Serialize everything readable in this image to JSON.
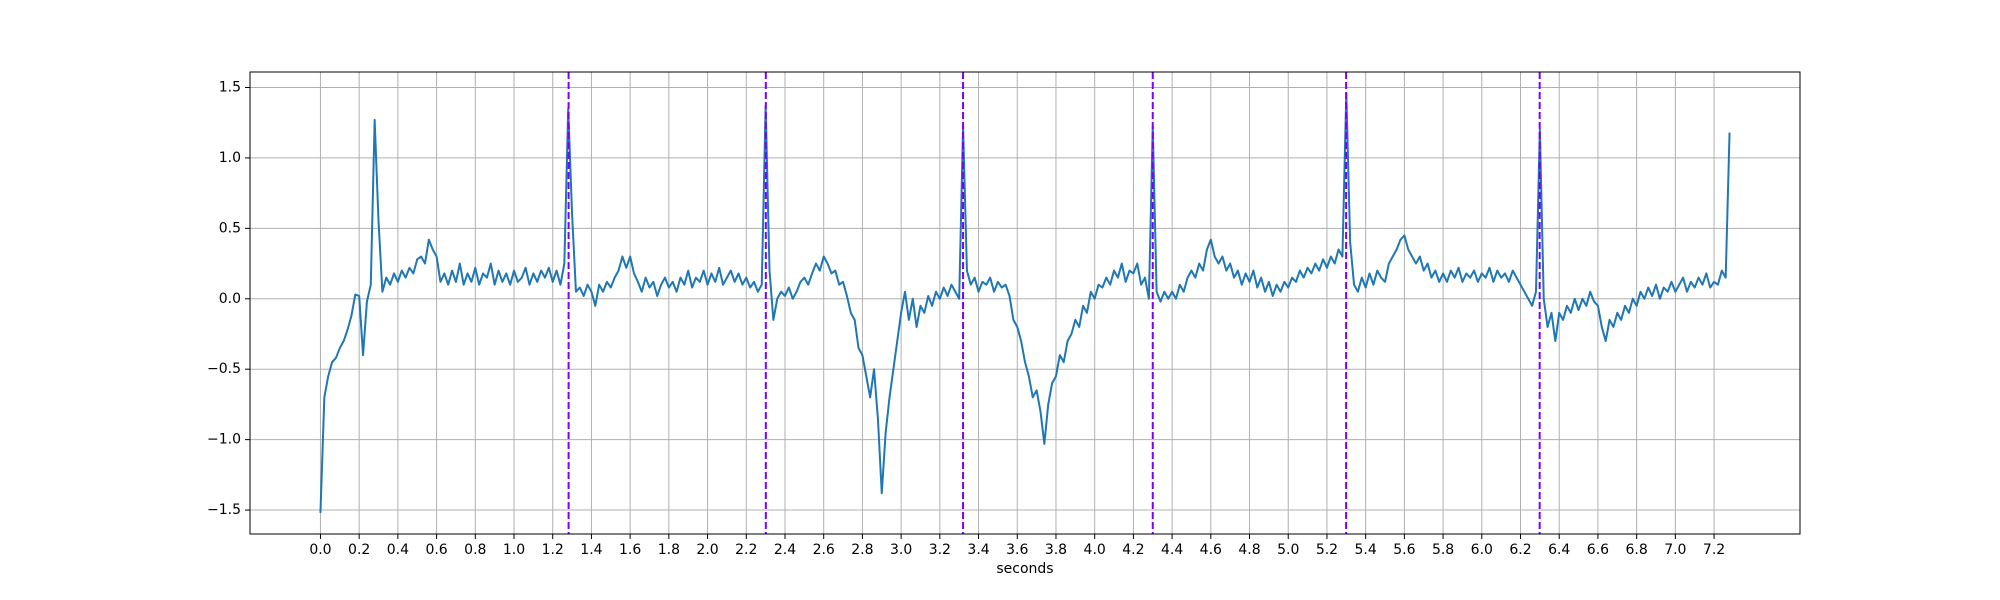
{
  "chart_data": {
    "type": "line",
    "x_label": "seconds",
    "color": "#1f77b4",
    "grid": true,
    "xlim": [
      -0.364,
      7.644
    ],
    "ylim": [
      -1.67,
      1.61
    ],
    "xticks": [
      {
        "value": 0,
        "label": "0.0"
      },
      0.2,
      0.4,
      0.6,
      0.8,
      {
        "value": 1,
        "label": "1.0"
      },
      1.2,
      1.4,
      1.6,
      1.8,
      {
        "value": 2,
        "label": "2.0"
      },
      2.2,
      2.4,
      2.6,
      2.8,
      {
        "value": 3,
        "label": "3.0"
      },
      3.2,
      3.4,
      3.6,
      3.8,
      {
        "value": 4,
        "label": "4.0"
      },
      4.2,
      4.4,
      4.6,
      4.8,
      {
        "value": 5,
        "label": "5.0"
      },
      5.2,
      5.4,
      5.6,
      5.8,
      {
        "value": 6,
        "label": "6.0"
      },
      6.2,
      6.4,
      6.6,
      6.8,
      {
        "value": 7,
        "label": "7.0"
      },
      7.2
    ],
    "yticks": [
      {
        "value": -1.5,
        "label": "−1.5"
      },
      {
        "value": -1,
        "label": "−1.0"
      },
      {
        "value": -0.5,
        "label": "−0.5"
      },
      {
        "value": 0,
        "label": "0.0"
      },
      0.5,
      {
        "value": 1,
        "label": "1.0"
      },
      1.5
    ],
    "vlines": {
      "color": "#7a00ff",
      "x": [
        1.282,
        2.301,
        3.32,
        4.3,
        5.299,
        6.299
      ]
    },
    "x": [
      0,
      0.02,
      0.04,
      0.06,
      0.08,
      0.1,
      0.12,
      0.14,
      0.16,
      0.18,
      0.2,
      0.22,
      0.24,
      0.26,
      0.28,
      0.3,
      0.32,
      0.34,
      0.36,
      0.38,
      0.4,
      0.42,
      0.44,
      0.46,
      0.48,
      0.5,
      0.52,
      0.54,
      0.56,
      0.58,
      0.6,
      0.62,
      0.64,
      0.66,
      0.68,
      0.7,
      0.72,
      0.74,
      0.76,
      0.78,
      0.8,
      0.82,
      0.84,
      0.86,
      0.88,
      0.9,
      0.92,
      0.94,
      0.96,
      0.98,
      1,
      1.02,
      1.04,
      1.06,
      1.08,
      1.1,
      1.12,
      1.14,
      1.16,
      1.18,
      1.2,
      1.22,
      1.24,
      1.26,
      1.28,
      1.3,
      1.32,
      1.34,
      1.36,
      1.38,
      1.4,
      1.42,
      1.44,
      1.46,
      1.48,
      1.5,
      1.52,
      1.54,
      1.56,
      1.58,
      1.6,
      1.62,
      1.64,
      1.66,
      1.68,
      1.7,
      1.72,
      1.74,
      1.76,
      1.78,
      1.8,
      1.82,
      1.84,
      1.86,
      1.88,
      1.9,
      1.92,
      1.94,
      1.96,
      1.98,
      2,
      2.02,
      2.04,
      2.06,
      2.08,
      2.1,
      2.12,
      2.14,
      2.16,
      2.18,
      2.2,
      2.22,
      2.24,
      2.26,
      2.28,
      2.3,
      2.32,
      2.34,
      2.36,
      2.38,
      2.4,
      2.42,
      2.44,
      2.46,
      2.48,
      2.5,
      2.52,
      2.54,
      2.56,
      2.58,
      2.6,
      2.62,
      2.64,
      2.66,
      2.68,
      2.7,
      2.72,
      2.74,
      2.76,
      2.78,
      2.8,
      2.82,
      2.84,
      2.86,
      2.88,
      2.9,
      2.92,
      2.94,
      2.96,
      2.98,
      3,
      3.02,
      3.04,
      3.06,
      3.08,
      3.1,
      3.12,
      3.14,
      3.16,
      3.18,
      3.2,
      3.22,
      3.24,
      3.26,
      3.28,
      3.3,
      3.32,
      3.34,
      3.36,
      3.38,
      3.4,
      3.42,
      3.44,
      3.46,
      3.48,
      3.5,
      3.52,
      3.54,
      3.56,
      3.58,
      3.6,
      3.62,
      3.64,
      3.66,
      3.68,
      3.7,
      3.72,
      3.74,
      3.76,
      3.78,
      3.8,
      3.82,
      3.84,
      3.86,
      3.88,
      3.9,
      3.92,
      3.94,
      3.96,
      3.98,
      4,
      4.02,
      4.04,
      4.06,
      4.08,
      4.1,
      4.12,
      4.14,
      4.16,
      4.18,
      4.2,
      4.22,
      4.24,
      4.26,
      4.28,
      4.3,
      4.32,
      4.34,
      4.36,
      4.38,
      4.4,
      4.42,
      4.44,
      4.46,
      4.48,
      4.5,
      4.52,
      4.54,
      4.56,
      4.58,
      4.6,
      4.62,
      4.64,
      4.66,
      4.68,
      4.7,
      4.72,
      4.74,
      4.76,
      4.78,
      4.8,
      4.82,
      4.84,
      4.86,
      4.88,
      4.9,
      4.92,
      4.94,
      4.96,
      4.98,
      5,
      5.02,
      5.04,
      5.06,
      5.08,
      5.1,
      5.12,
      5.14,
      5.16,
      5.18,
      5.2,
      5.22,
      5.24,
      5.26,
      5.28,
      5.3,
      5.32,
      5.34,
      5.36,
      5.38,
      5.4,
      5.42,
      5.44,
      5.46,
      5.48,
      5.5,
      5.52,
      5.54,
      5.56,
      5.58,
      5.6,
      5.62,
      5.64,
      5.66,
      5.68,
      5.7,
      5.72,
      5.74,
      5.76,
      5.78,
      5.8,
      5.82,
      5.84,
      5.86,
      5.88,
      5.9,
      5.92,
      5.94,
      5.96,
      5.98,
      6,
      6.02,
      6.04,
      6.06,
      6.08,
      6.1,
      6.12,
      6.14,
      6.16,
      6.18,
      6.2,
      6.22,
      6.24,
      6.26,
      6.28,
      6.3,
      6.32,
      6.34,
      6.36,
      6.38,
      6.4,
      6.42,
      6.44,
      6.46,
      6.48,
      6.5,
      6.52,
      6.54,
      6.56,
      6.58,
      6.6,
      6.62,
      6.64,
      6.66,
      6.68,
      6.7,
      6.72,
      6.74,
      6.76,
      6.78,
      6.8,
      6.82,
      6.84,
      6.86,
      6.88,
      6.9,
      6.92,
      6.94,
      6.96,
      6.98,
      7,
      7.02,
      7.04,
      7.06,
      7.08,
      7.1,
      7.12,
      7.14,
      7.16,
      7.18,
      7.2,
      7.22,
      7.24,
      7.26,
      7.28
    ],
    "values": [
      -1.52,
      -0.7,
      -0.55,
      -0.45,
      -0.42,
      -0.35,
      -0.3,
      -0.22,
      -0.12,
      0.03,
      0.02,
      -0.4,
      -0.02,
      0.1,
      1.27,
      0.55,
      0.05,
      0.15,
      0.1,
      0.18,
      0.12,
      0.2,
      0.15,
      0.22,
      0.18,
      0.28,
      0.3,
      0.25,
      0.42,
      0.35,
      0.3,
      0.12,
      0.18,
      0.1,
      0.2,
      0.12,
      0.25,
      0.1,
      0.18,
      0.12,
      0.22,
      0.1,
      0.18,
      0.15,
      0.25,
      0.1,
      0.2,
      0.12,
      0.18,
      0.1,
      0.2,
      0.12,
      0.15,
      0.22,
      0.1,
      0.18,
      0.12,
      0.2,
      0.15,
      0.22,
      0.12,
      0.2,
      0.1,
      0.25,
      1.35,
      0.6,
      0.05,
      0.08,
      0.02,
      0.1,
      0.05,
      -0.05,
      0.1,
      0.05,
      0.12,
      0.08,
      0.15,
      0.2,
      0.3,
      0.22,
      0.3,
      0.18,
      0.12,
      0.05,
      0.15,
      0.08,
      0.12,
      0.02,
      0.1,
      0.15,
      0.08,
      0.12,
      0.05,
      0.15,
      0.1,
      0.2,
      0.08,
      0.15,
      0.12,
      0.2,
      0.1,
      0.18,
      0.12,
      0.22,
      0.1,
      0.15,
      0.2,
      0.12,
      0.18,
      0.1,
      0.15,
      0.08,
      0.12,
      0.05,
      0.1,
      1.37,
      0.2,
      -0.15,
      0,
      0.05,
      0.02,
      0.08,
      0,
      0.05,
      0.12,
      0.15,
      0.1,
      0.18,
      0.25,
      0.2,
      0.3,
      0.25,
      0.18,
      0.2,
      0.1,
      0.12,
      0.02,
      -0.1,
      -0.15,
      -0.35,
      -0.4,
      -0.55,
      -0.7,
      -0.5,
      -0.85,
      -1.38,
      -0.95,
      -0.7,
      -0.5,
      -0.3,
      -0.1,
      0.05,
      -0.15,
      0,
      -0.2,
      -0.05,
      -0.1,
      0.02,
      -0.05,
      0.05,
      0,
      0.08,
      0.02,
      0.1,
      0.05,
      0,
      1.22,
      0.2,
      0.1,
      0.15,
      0.05,
      0.12,
      0.1,
      0.15,
      0.05,
      0.12,
      0.08,
      0.1,
      0.02,
      -0.15,
      -0.2,
      -0.3,
      -0.45,
      -0.55,
      -0.7,
      -0.65,
      -0.8,
      -1.03,
      -0.75,
      -0.6,
      -0.55,
      -0.4,
      -0.45,
      -0.3,
      -0.25,
      -0.15,
      -0.2,
      -0.05,
      -0.1,
      0.05,
      0,
      0.1,
      0.08,
      0.15,
      0.1,
      0.2,
      0.15,
      0.25,
      0.12,
      0.2,
      0.18,
      0.25,
      0.1,
      0.15,
      0,
      1.22,
      0.05,
      -0.02,
      0.05,
      0,
      0.05,
      0,
      0.1,
      0.05,
      0.15,
      0.2,
      0.15,
      0.25,
      0.2,
      0.35,
      0.42,
      0.3,
      0.25,
      0.3,
      0.2,
      0.25,
      0.15,
      0.2,
      0.1,
      0.18,
      0.12,
      0.2,
      0.08,
      0.15,
      0.05,
      0.12,
      0.02,
      0.1,
      0.05,
      0.12,
      0.08,
      0.15,
      0.12,
      0.2,
      0.15,
      0.22,
      0.18,
      0.25,
      0.2,
      0.28,
      0.22,
      0.3,
      0.25,
      0.35,
      0.3,
      1.46,
      0.4,
      0.1,
      0.05,
      0.15,
      0.08,
      0.18,
      0.1,
      0.2,
      0.15,
      0.12,
      0.25,
      0.3,
      0.35,
      0.42,
      0.45,
      0.35,
      0.3,
      0.25,
      0.3,
      0.2,
      0.25,
      0.15,
      0.2,
      0.12,
      0.18,
      0.12,
      0.2,
      0.15,
      0.22,
      0.12,
      0.18,
      0.15,
      0.2,
      0.12,
      0.18,
      0.15,
      0.22,
      0.12,
      0.2,
      0.15,
      0.18,
      0.12,
      0.2,
      0.15,
      0.1,
      0.05,
      0,
      -0.05,
      0.05,
      1.2,
      0,
      -0.2,
      -0.1,
      -0.3,
      -0.1,
      -0.15,
      -0.05,
      -0.1,
      0,
      -0.08,
      0,
      -0.05,
      0.05,
      -0.02,
      -0.05,
      -0.2,
      -0.3,
      -0.15,
      -0.2,
      -0.1,
      -0.15,
      -0.05,
      -0.1,
      0,
      -0.05,
      0.05,
      0,
      0.08,
      0.02,
      0.1,
      0,
      0.08,
      0.05,
      0.12,
      0.05,
      0.1,
      0.15,
      0.05,
      0.12,
      0.08,
      0.15,
      0.1,
      0.18,
      0.08,
      0.12,
      0.1,
      0.2,
      0.15,
      1.18
    ]
  }
}
